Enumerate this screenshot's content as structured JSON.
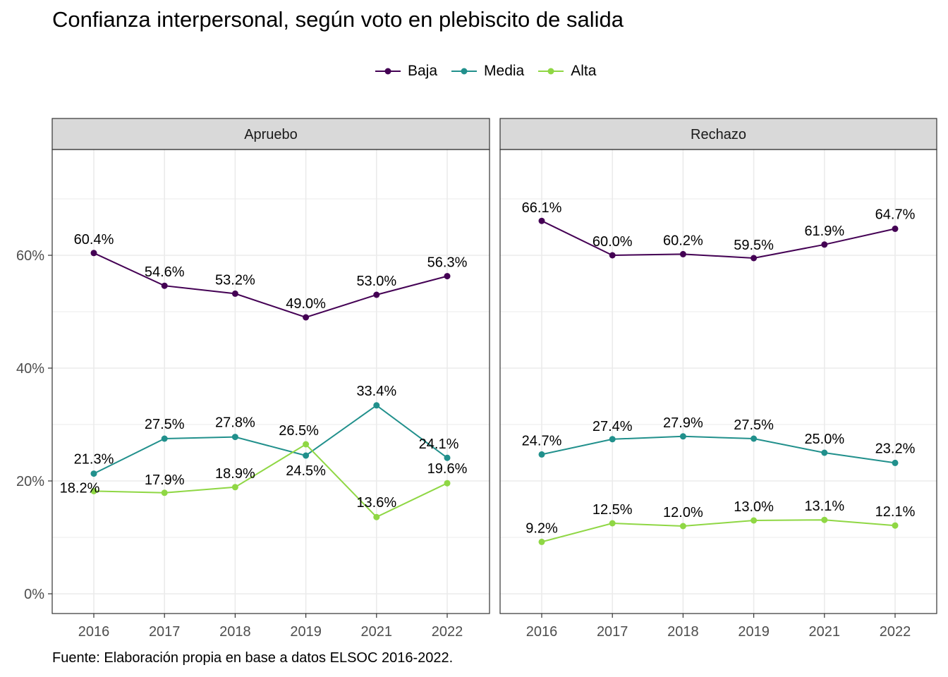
{
  "chart_data": {
    "type": "line",
    "title": "Confianza interpersonal, según voto en plebiscito de salida",
    "caption": "Fuente: Elaboración propia en base a datos ELSOC 2016-2022.",
    "x": [
      "2016",
      "2017",
      "2018",
      "2019",
      "2021",
      "2022"
    ],
    "ylim": [
      -3.5,
      80
    ],
    "y_ticks": [
      0,
      20,
      40,
      60
    ],
    "y_tick_labels": [
      "0%",
      "20%",
      "40%",
      "60%"
    ],
    "grid": true,
    "legend_position": "top",
    "legend": [
      "Baja",
      "Media",
      "Alta"
    ],
    "colors": {
      "Baja": "#440154",
      "Media": "#21908C",
      "Alta": "#8FD744"
    },
    "facets": [
      {
        "label": "Apruebo",
        "series": [
          {
            "name": "Baja",
            "values": [
              60.4,
              54.6,
              53.2,
              49.0,
              53.0,
              56.3
            ],
            "labels": [
              "60.4%",
              "54.6%",
              "53.2%",
              "49.0%",
              "53.0%",
              "56.3%"
            ]
          },
          {
            "name": "Media",
            "values": [
              21.3,
              27.5,
              27.8,
              24.5,
              33.4,
              24.1
            ],
            "labels": [
              "21.3%",
              "27.5%",
              "27.8%",
              "24.5%",
              "33.4%",
              "24.1%"
            ]
          },
          {
            "name": "Alta",
            "values": [
              18.2,
              17.9,
              18.9,
              26.5,
              13.6,
              19.6
            ],
            "labels": [
              "18.2%",
              "17.9%",
              "18.9%",
              "26.5%",
              "13.6%",
              "19.6%"
            ]
          }
        ]
      },
      {
        "label": "Rechazo",
        "series": [
          {
            "name": "Baja",
            "values": [
              66.1,
              60.0,
              60.2,
              59.5,
              61.9,
              64.7
            ],
            "labels": [
              "66.1%",
              "60.0%",
              "60.2%",
              "59.5%",
              "61.9%",
              "64.7%"
            ]
          },
          {
            "name": "Media",
            "values": [
              24.7,
              27.4,
              27.9,
              27.5,
              25.0,
              23.2
            ],
            "labels": [
              "24.7%",
              "27.4%",
              "27.9%",
              "27.5%",
              "25.0%",
              "23.2%"
            ]
          },
          {
            "name": "Alta",
            "values": [
              9.2,
              12.5,
              12.0,
              13.0,
              13.1,
              12.1
            ],
            "labels": [
              "9.2%",
              "12.5%",
              "12.0%",
              "13.0%",
              "13.1%",
              "12.1%"
            ]
          }
        ]
      }
    ]
  }
}
